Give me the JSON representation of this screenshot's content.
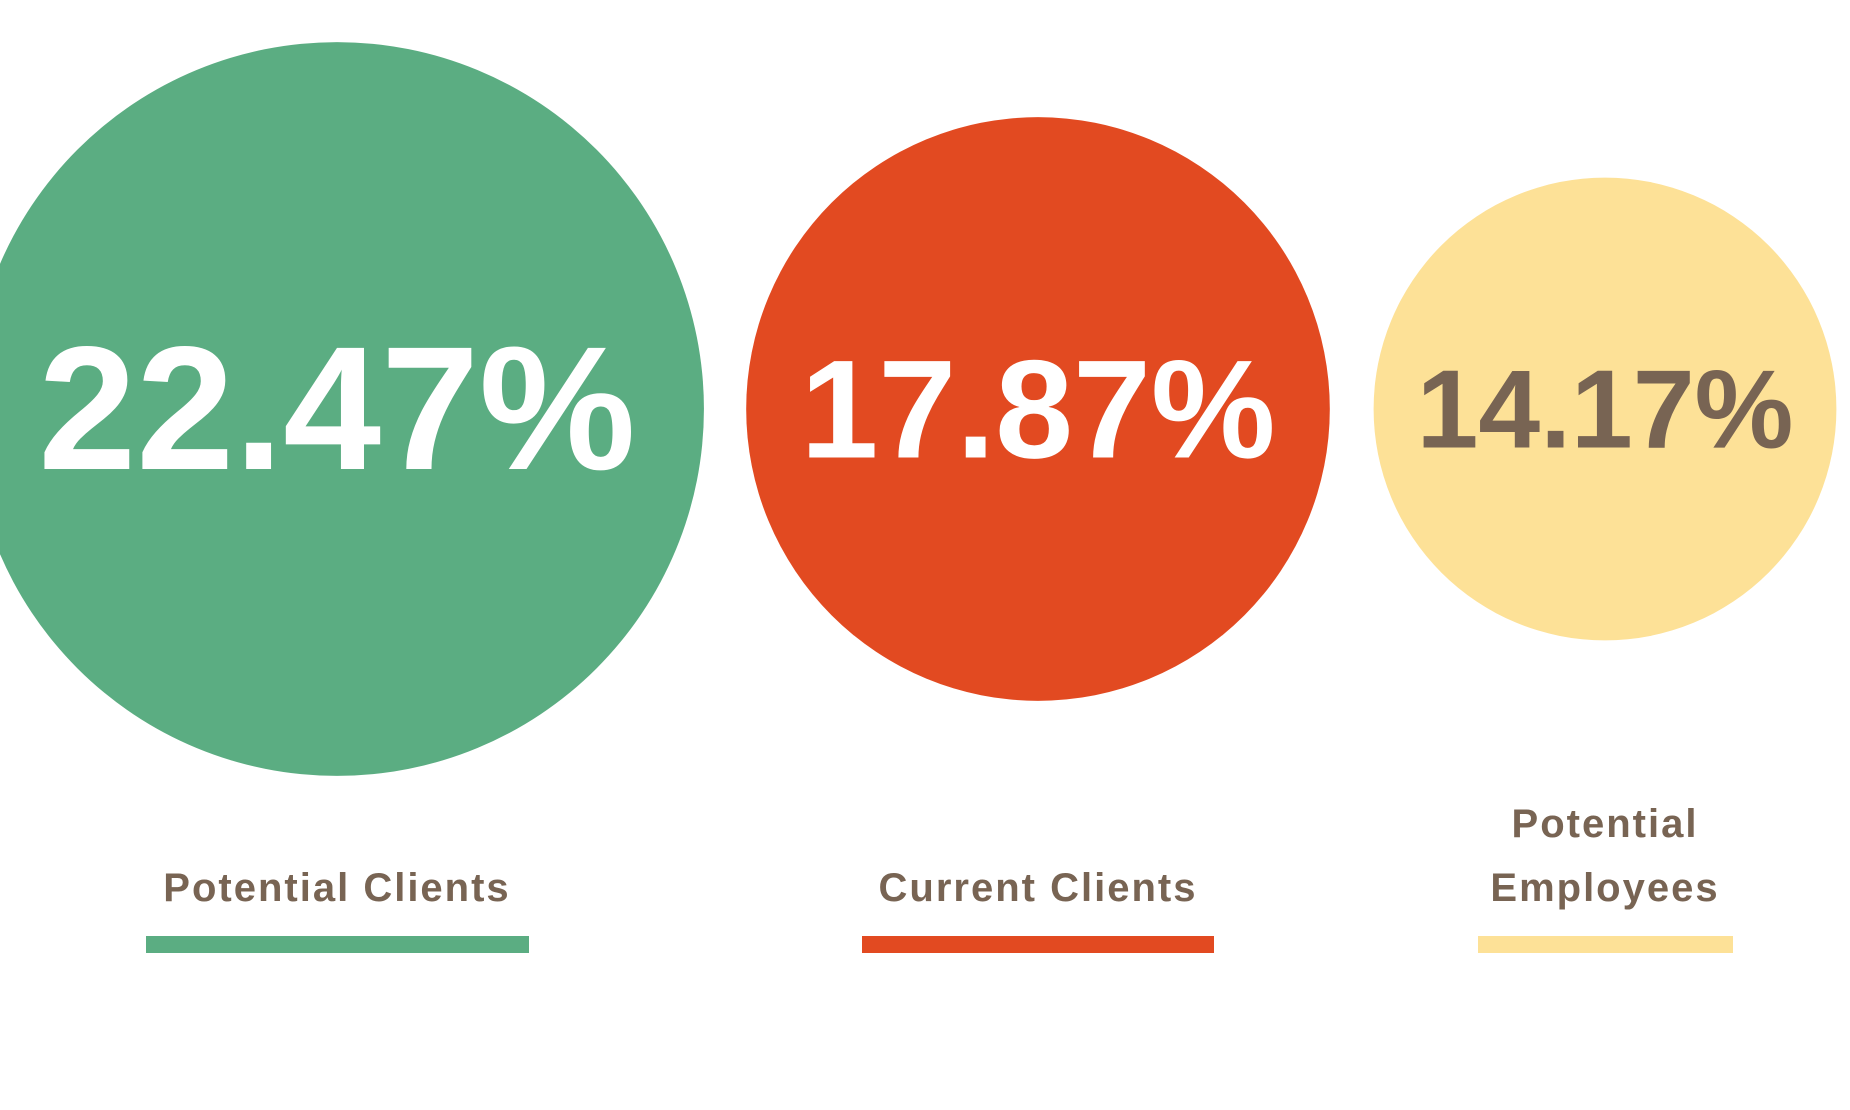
{
  "chart_data": {
    "type": "bubble",
    "categories": [
      "Potential Clients",
      "Current Clients",
      "Potential Employees"
    ],
    "values": [
      22.47,
      17.87,
      14.17
    ],
    "value_labels": [
      "22.47%",
      "17.87%",
      "14.17%"
    ],
    "colors": [
      "#5bad82",
      "#e24a21",
      "#fde197"
    ],
    "value_label_colors": [
      "#ffffff",
      "#ffffff",
      "#786453"
    ]
  }
}
